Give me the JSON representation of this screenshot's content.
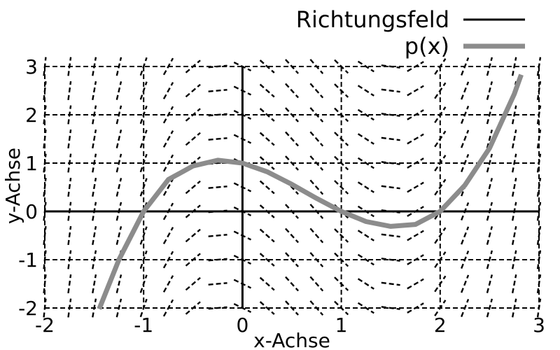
{
  "chart_data": {
    "type": "line",
    "title": "",
    "xlabel": "x-Achse",
    "ylabel": "y-Achse",
    "xlim": [
      -2,
      3
    ],
    "ylim": [
      -2,
      3
    ],
    "x_ticks": [
      "-2",
      "-1",
      "0",
      "1",
      "2",
      "3"
    ],
    "y_ticks": [
      "-2",
      "-1",
      "0",
      "1",
      "2",
      "3"
    ],
    "grid": true,
    "legend_position": "top-right",
    "series": [
      {
        "name": "Richtungsfeld",
        "kind": "direction-field",
        "color": "#000000",
        "dashed": true
      },
      {
        "name": "p(x)",
        "kind": "curve",
        "color": "#8c8c8c",
        "roots": [
          -1,
          1,
          2
        ],
        "x": [
          -1.45,
          -1.25,
          -1.0,
          -0.75,
          -0.5,
          -0.25,
          0.0,
          0.25,
          0.5,
          0.75,
          1.0,
          1.25,
          1.5,
          1.75,
          2.0,
          2.25,
          2.5,
          2.75,
          2.82
        ],
        "y": [
          -2.02,
          -1.0,
          0.0,
          0.66,
          0.94,
          1.06,
          1.0,
          0.82,
          0.56,
          0.27,
          0.0,
          -0.21,
          -0.31,
          -0.27,
          0.0,
          0.54,
          1.31,
          2.43,
          2.83
        ]
      }
    ]
  }
}
